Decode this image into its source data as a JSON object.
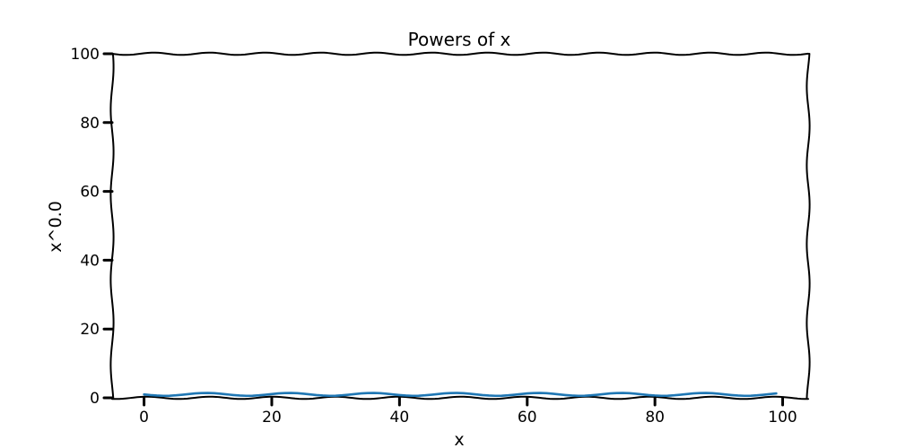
{
  "chart_data": {
    "type": "line",
    "title": "Powers of x",
    "xlabel": "x",
    "ylabel": "x^0.0",
    "xlim": [
      -5,
      104
    ],
    "ylim": [
      0,
      100
    ],
    "x_ticks": [
      0,
      20,
      40,
      60,
      80,
      100
    ],
    "y_ticks": [
      0,
      20,
      40,
      60,
      80,
      100
    ],
    "x_tick_labels": [
      "0",
      "20",
      "40",
      "60",
      "80",
      "100"
    ],
    "y_tick_labels": [
      "0",
      "20",
      "40",
      "60",
      "80",
      "100"
    ],
    "grid": false,
    "style": "xkcd",
    "series": [
      {
        "color": "#1f77b4",
        "x_start": 0,
        "x_end": 99,
        "step": 1,
        "y_value": 1
      }
    ]
  }
}
